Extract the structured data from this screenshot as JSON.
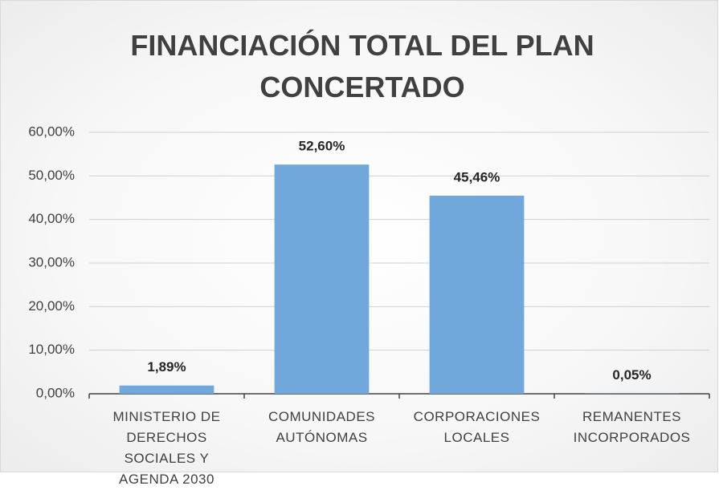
{
  "chart_data": {
    "type": "bar",
    "title": "FINANCIACIÓN TOTAL DEL PLAN CONCERTADO",
    "categories": [
      "MINISTERIO DE DERECHOS SOCIALES Y AGENDA 2030",
      "COMUNIDADES AUTÓNOMAS",
      "CORPORACIONES LOCALES",
      "REMANENTES INCORPORADOS"
    ],
    "values": [
      1.89,
      52.6,
      45.46,
      0.05
    ],
    "value_labels": [
      "1,89%",
      "52,60%",
      "45,46%",
      "0,05%"
    ],
    "color": "#70a8dc",
    "ylim": [
      0,
      60
    ],
    "yticks": [
      {
        "value": 0,
        "label": "0,00%"
      },
      {
        "value": 10,
        "label": "10,00%"
      },
      {
        "value": 20,
        "label": "20,00%"
      },
      {
        "value": 30,
        "label": "30,00%"
      },
      {
        "value": 40,
        "label": "40,00%"
      },
      {
        "value": 50,
        "label": "50,00%"
      },
      {
        "value": 60,
        "label": "60,00%"
      }
    ],
    "grid": true
  }
}
